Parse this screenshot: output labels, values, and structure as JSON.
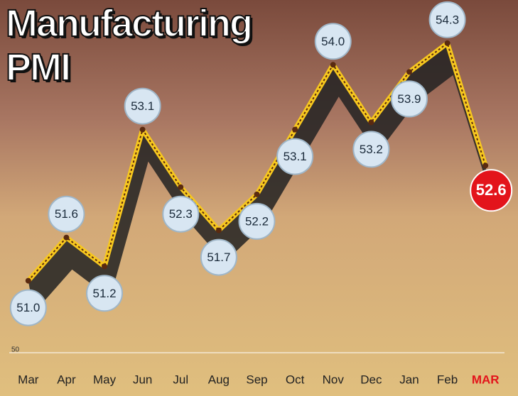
{
  "chart_data": {
    "type": "line",
    "title": "Manufacturing PMI",
    "categories": [
      "Mar",
      "Apr",
      "May",
      "Jun",
      "Jul",
      "Aug",
      "Sep",
      "Oct",
      "Nov",
      "Dec",
      "Jan",
      "Feb",
      "MAR"
    ],
    "values": [
      51.0,
      51.6,
      51.2,
      53.1,
      52.3,
      51.7,
      52.2,
      53.1,
      54.0,
      53.2,
      53.9,
      54.3,
      52.6
    ],
    "value_labels": [
      "51.0",
      "51.6",
      "51.2",
      "53.1",
      "52.3",
      "51.7",
      "52.2",
      "53.1",
      "54.0",
      "53.2",
      "53.9",
      "54.3",
      "52.6"
    ],
    "color": "#f7c81e",
    "highlight_color": "#e3141b",
    "ylim": [
      50,
      54.9
    ],
    "yticks": [
      50
    ]
  }
}
